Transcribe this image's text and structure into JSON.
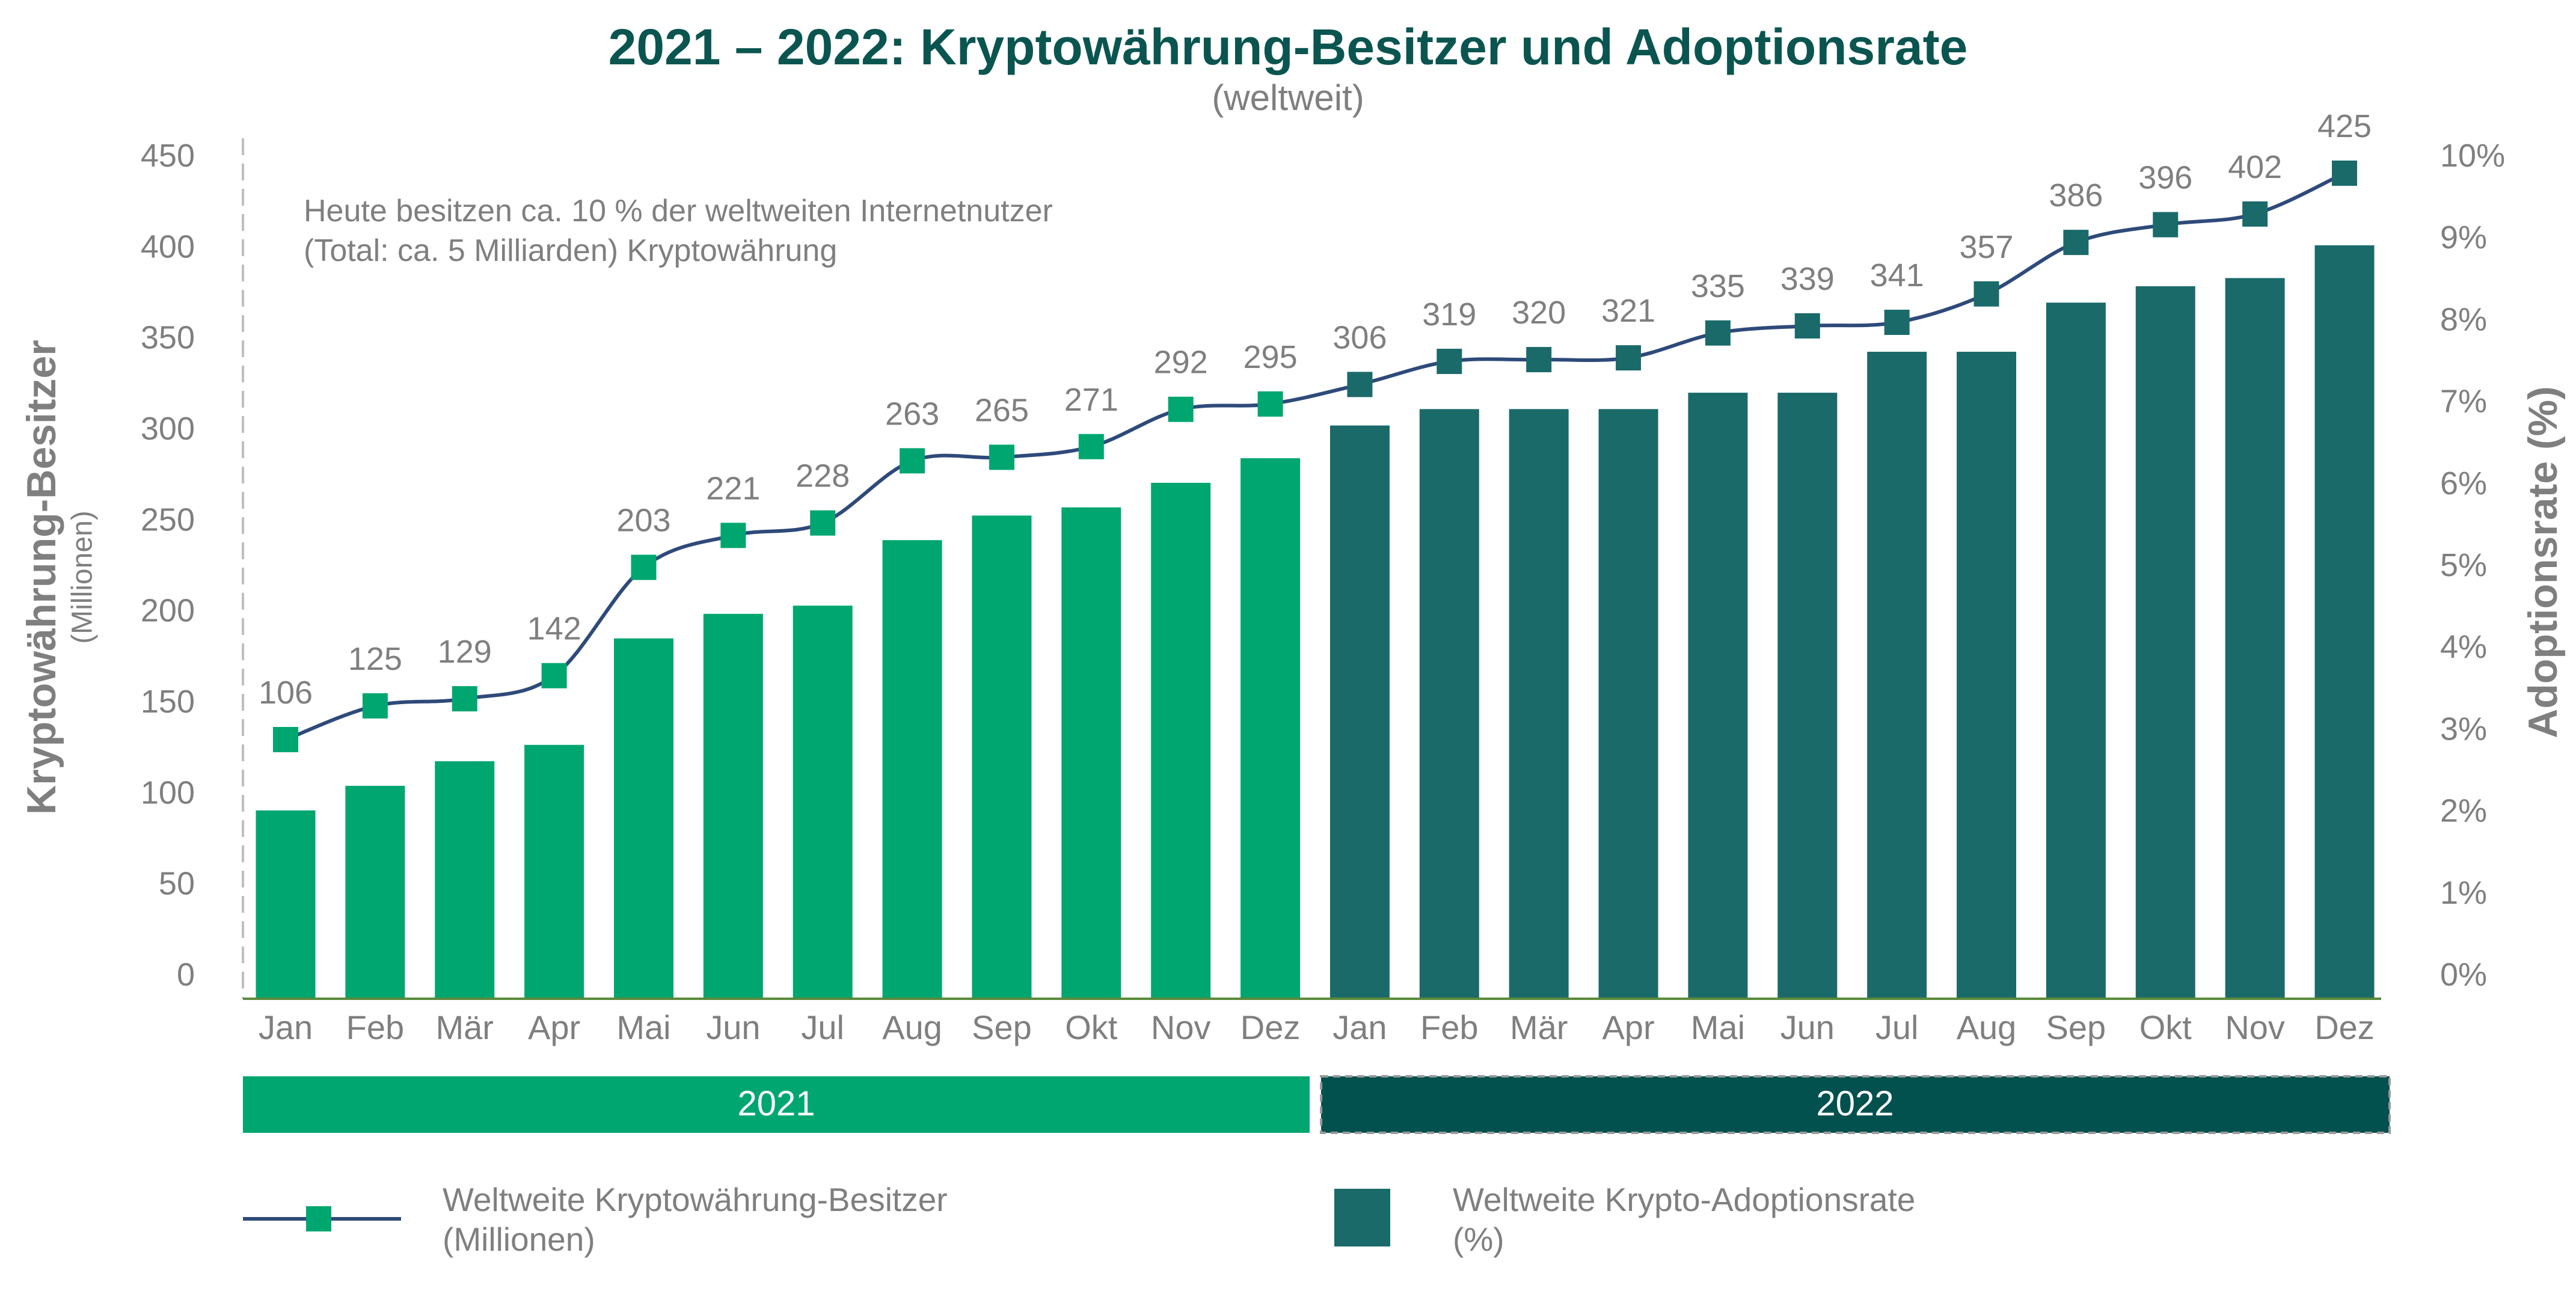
{
  "chart_data": {
    "type": "bar+line",
    "title": "2021 – 2022: Kryptowährung-Besitzer und Adoptionsrate",
    "subtitle": "(weltweit)",
    "annotation": [
      "Heute besitzen ca. 10 % der weltweiten Internetnutzer",
      "(Total: ca. 5 Milliarden) Kryptowährung"
    ],
    "categories": [
      "Jan",
      "Feb",
      "Mär",
      "Apr",
      "Mai",
      "Jun",
      "Jul",
      "Aug",
      "Sep",
      "Okt",
      "Nov",
      "Dez",
      "Jan",
      "Feb",
      "Mär",
      "Apr",
      "Mai",
      "Jun",
      "Jul",
      "Aug",
      "Sep",
      "Okt",
      "Nov",
      "Dez"
    ],
    "years": [
      {
        "label": "2021",
        "color": "#00a670"
      },
      {
        "label": "2022",
        "color": "#03514f"
      }
    ],
    "left_axis": {
      "label": "Kryptowährung-Besitzer",
      "sublabel": "(Millionen)",
      "ylim": [
        0,
        450
      ],
      "ticks": [
        "0",
        "50",
        "100",
        "150",
        "200",
        "250",
        "300",
        "350",
        "400",
        "450"
      ]
    },
    "right_axis": {
      "label": "Adoptionsrate (%)",
      "ylim": [
        0,
        10
      ],
      "ticks": [
        "0%",
        "1%",
        "2%",
        "3%",
        "4%",
        "5%",
        "6%",
        "7%",
        "8%",
        "9%",
        "10%"
      ]
    },
    "series": [
      {
        "name": "Weltweite Kryptowährung-Besitzer (Millionen)",
        "type": "line",
        "axis": "left",
        "color": "#2e4a7a",
        "values": [
          106,
          125,
          129,
          142,
          203,
          221,
          228,
          263,
          265,
          271,
          292,
          295,
          306,
          319,
          320,
          321,
          335,
          339,
          341,
          357,
          386,
          396,
          402,
          425
        ]
      },
      {
        "name": "Weltweite Krypto-Adoptionsrate (%)",
        "type": "bar",
        "axis": "right",
        "values": [
          2.3,
          2.6,
          2.9,
          3.1,
          4.4,
          4.7,
          4.8,
          5.6,
          5.9,
          6.0,
          6.3,
          6.6,
          7.0,
          7.2,
          7.2,
          7.2,
          7.4,
          7.4,
          7.9,
          7.9,
          8.5,
          8.7,
          8.8,
          9.2
        ]
      }
    ],
    "colors": {
      "2021": "#00a670",
      "2022": "#1b6a6a",
      "line": "#2e4a7a",
      "title": "#0b5550"
    },
    "legend": {
      "placement": "bottom",
      "line_label": [
        "Weltweite Kryptowährung-Besitzer",
        "(Millionen)"
      ],
      "bar_label": [
        "Weltweite Krypto-Adoptionsrate",
        "(%)"
      ]
    },
    "grid": false
  }
}
